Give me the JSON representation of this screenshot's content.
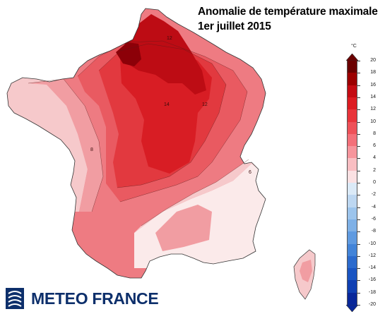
{
  "title": {
    "line1": "Anomalie de température maximale",
    "line2": "1er juillet 2015"
  },
  "colorbar": {
    "unit": "°C",
    "ticks": [
      "20",
      "18",
      "16",
      "14",
      "12",
      "10",
      "8",
      "6",
      "4",
      "2",
      "0",
      "-2",
      "-4",
      "-6",
      "-8",
      "-10",
      "-12",
      "-14",
      "-16",
      "-18",
      "-20"
    ],
    "colors": [
      "#6b0000",
      "#9c0000",
      "#c40b12",
      "#dc1b21",
      "#e8343a",
      "#ee5158",
      "#f37079",
      "#f6959c",
      "#f9bec2",
      "#fbe1e3",
      "#dbeaf7",
      "#bdd7f1",
      "#9cc4ec",
      "#7eb0e6",
      "#5f9ae0",
      "#4384d8",
      "#2c6bcd",
      "#1a55c2",
      "#0f3fb2",
      "#08279a"
    ]
  },
  "map": {
    "labels": [
      {
        "text": "12"
      },
      {
        "text": "14"
      },
      {
        "text": "12"
      },
      {
        "text": "8"
      },
      {
        "text": "6"
      }
    ],
    "colors": {
      "a4": "#f6c9cb",
      "a6": "#f19da2",
      "a8": "#ee7b82",
      "a10": "#e95a61",
      "a12": "#e2393f",
      "a14": "#d81d24",
      "a16": "#bd0c14",
      "a18": "#8c0008",
      "cool": "#fbeaea",
      "cold": "#ffffff"
    }
  },
  "logo": {
    "text": "METEO FRANCE",
    "icon": "meteo-france-logo-icon",
    "color": "#0d2f6b"
  }
}
